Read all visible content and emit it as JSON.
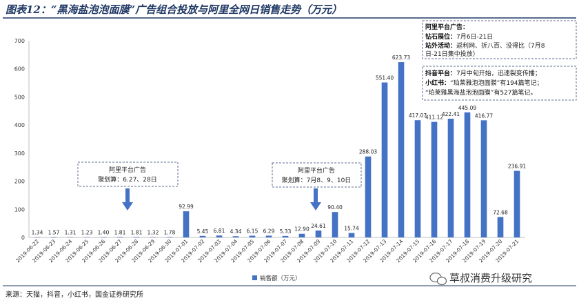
{
  "title": "图表12：“黑海盐泡泡面膜”广告组合投放与阿里全网日销售走势（万元）",
  "source": "来源：天猫，抖音，小红书，国金证券研究所",
  "watermark": "草叔消费升级研究",
  "colors": {
    "bar": "#4472c4",
    "title": "#1f3864",
    "arrow": "#4472c4",
    "dash": "#5b6b8c"
  },
  "annotations": {
    "a1": {
      "line1": "阿里平台广告",
      "line2": "聚划算：6.27、28日"
    },
    "a2": {
      "line1": "阿里平台广告",
      "line2": "聚划算：7月8、9、10日"
    },
    "a3": {
      "l1": "阿里平台广告：",
      "l2a": "钻石展位：",
      "l2b": "7月6日-21日",
      "l3a": "站外活动：",
      "l3b": "返利网、折八百、没得比（7月8",
      "l4": "日-21日集中投放）",
      "l5a": "抖音平台：",
      "l5b": "7月中旬开始，迅速裂变传播；",
      "l6a": "小红书：",
      "l6b": "“珀莱雅泡泡面膜”有194篇笔记；",
      "l7": "“珀莱雅黑海盐泡泡面膜”有527篇笔记。"
    }
  },
  "chart_data": {
    "type": "bar",
    "categories": [
      "2019-06-22",
      "2019-06-23",
      "2019-06-24",
      "2019-06-25",
      "2019-06-26",
      "2019-06-27",
      "2019-06-28",
      "2019-06-29",
      "2019-06-30",
      "2019-07-01",
      "2019-07-02",
      "2019-07-03",
      "2019-07-04",
      "2019-07-05",
      "2019-07-06",
      "2019-07-07",
      "2019-07-08",
      "2019-07-09",
      "2019-07-10",
      "2019-07-11",
      "2019-07-12",
      "2019-07-13",
      "2019-07-14",
      "2019-07-15",
      "2019-07-16",
      "2019-07-17",
      "2019-07-18",
      "2019-07-19",
      "2019-07-20",
      "2019-07-21"
    ],
    "series": [
      {
        "name": "销售额（万元）",
        "values": [
          1.34,
          1.57,
          1.31,
          1.23,
          1.4,
          1.81,
          1.81,
          1.32,
          1.78,
          92.99,
          5.45,
          6.81,
          4.34,
          6.15,
          6.29,
          5.33,
          12.9,
          24.61,
          90.4,
          15.74,
          288.03,
          551.4,
          623.73,
          417.07,
          411.12,
          422.41,
          445.09,
          416.77,
          72.68,
          236.91
        ],
        "labels": [
          "1.34",
          "1.57",
          "1.31",
          "1.23",
          "1.40",
          "1.81",
          "1.81",
          "1.32",
          "1.78",
          "92.99",
          "5.45",
          "6.81",
          "4.34",
          "6.15",
          "6.29",
          "5.33",
          "12.90",
          "24.61",
          "90.40",
          "15.74",
          "288.03",
          "551.40",
          "623.73",
          "417.07",
          "411.12",
          "422.41",
          "445.09",
          "416.77",
          "72.68",
          "236.91"
        ]
      }
    ],
    "yticks": [
      "0",
      "100",
      "200",
      "300",
      "400",
      "500",
      "600",
      "700"
    ],
    "ylim": [
      0,
      700
    ],
    "legend": "bottom-center",
    "grid": false
  }
}
